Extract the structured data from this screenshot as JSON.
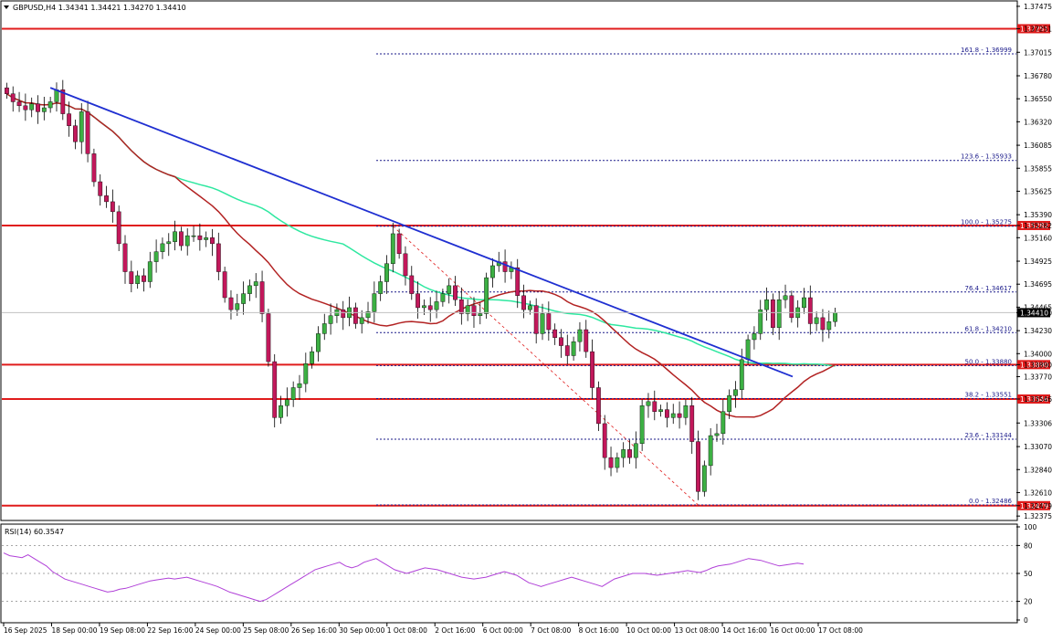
{
  "header": {
    "symbol_line": "GBPUSD,H4  1.34341 1.34421 1.34270 1.34410",
    "collapse_icon": "triangle-down-icon"
  },
  "rsi_header": "RSI(14) 60.3547",
  "colors": {
    "background": "#ffffff",
    "bull_candle": "#3cb043",
    "bear_candle": "#c2185b",
    "ma_slow": "#b22222",
    "ma_fast": "#2ee8a0",
    "trendline": "#1f2fd1",
    "level_line": "#e01b1b",
    "fib_line": "#1a1a8a",
    "rsi_line": "#b040d8",
    "grid_text": "#000000"
  },
  "chart_data": [
    {
      "type": "candlestick",
      "symbol": "GBPUSD",
      "timeframe": "H4",
      "ohlc_header": {
        "open": 1.34341,
        "high": 1.34421,
        "low": 1.3427,
        "close": 1.3441
      },
      "y_axis_ticks": [
        "1.37475",
        "1.37251",
        "1.37015",
        "1.36780",
        "1.36550",
        "1.36320",
        "1.36085",
        "1.35855",
        "1.35625",
        "1.35390",
        "1.35282",
        "1.35160",
        "1.34925",
        "1.34695",
        "1.34465",
        "1.34410",
        "1.34230",
        "1.34000",
        "1.33890",
        "1.33770",
        "1.33546",
        "1.33306",
        "1.33070",
        "1.32840",
        "1.32610",
        "1.32479",
        "1.32375"
      ],
      "ylim": [
        1.3234,
        1.3752
      ],
      "x_axis_ticks": [
        "16 Sep 2025",
        "18 Sep 00:00",
        "19 Sep 08:00",
        "22 Sep 16:00",
        "24 Sep 00:00",
        "25 Sep 08:00",
        "26 Sep 16:00",
        "30 Sep 00:00",
        "1 Oct 08:00",
        "2 Oct 16:00",
        "6 Oct 00:00",
        "7 Oct 08:00",
        "8 Oct 16:00",
        "10 Oct 00:00",
        "13 Oct 08:00",
        "14 Oct 16:00",
        "16 Oct 00:00",
        "17 Oct 08:00"
      ],
      "close_series": [
        1.366,
        1.3652,
        1.3648,
        1.3644,
        1.365,
        1.3642,
        1.3646,
        1.3652,
        1.3664,
        1.364,
        1.3628,
        1.3612,
        1.3642,
        1.36,
        1.3572,
        1.3558,
        1.3552,
        1.3542,
        1.351,
        1.3482,
        1.347,
        1.3478,
        1.3472,
        1.3492,
        1.3502,
        1.351,
        1.3512,
        1.3522,
        1.3508,
        1.3518,
        1.3518,
        1.3514,
        1.3516,
        1.351,
        1.3482,
        1.3456,
        1.3444,
        1.345,
        1.346,
        1.3468,
        1.3472,
        1.344,
        1.3392,
        1.3336,
        1.3348,
        1.3354,
        1.3366,
        1.337,
        1.339,
        1.3402,
        1.342,
        1.343,
        1.3438,
        1.3444,
        1.3436,
        1.3446,
        1.343,
        1.3436,
        1.3442,
        1.346,
        1.3472,
        1.349,
        1.352,
        1.35,
        1.3478,
        1.346,
        1.3446,
        1.3448,
        1.3444,
        1.3452,
        1.346,
        1.3468,
        1.3454,
        1.344,
        1.3448,
        1.3438,
        1.344,
        1.3476,
        1.3488,
        1.3492,
        1.3482,
        1.3486,
        1.3458,
        1.3444,
        1.3448,
        1.342,
        1.344,
        1.3424,
        1.3416,
        1.3408,
        1.3398,
        1.3412,
        1.3424,
        1.3402,
        1.3366,
        1.333,
        1.3296,
        1.3286,
        1.3296,
        1.3304,
        1.3296,
        1.331,
        1.3348,
        1.3352,
        1.3342,
        1.3344,
        1.3336,
        1.334,
        1.3336,
        1.3348,
        1.3312,
        1.3262,
        1.3288,
        1.3318,
        1.332,
        1.3342,
        1.3358,
        1.3364,
        1.3394,
        1.3414,
        1.342,
        1.3444,
        1.3454,
        1.3426,
        1.3454,
        1.3458,
        1.3436,
        1.3446,
        1.3456,
        1.343,
        1.3436,
        1.3424,
        1.3432,
        1.3441
      ],
      "overlays": [
        {
          "name": "",
          "kind": "moving-average",
          "color": "#b22222"
        },
        {
          "name": "",
          "kind": "moving-average",
          "color": "#2ee8a0"
        },
        {
          "name": "",
          "kind": "trendline",
          "color": "#1f2fd1",
          "from": 1.3666,
          "to": 1.3377
        }
      ],
      "horizontal_levels": [
        {
          "label": "1.37251",
          "value": 1.37251,
          "style": "solid"
        },
        {
          "label": "1.35282",
          "value": 1.35282,
          "style": "solid"
        },
        {
          "label": "1.33890",
          "value": 1.3389,
          "style": "solid"
        },
        {
          "label": "1.33546",
          "value": 1.33546,
          "style": "solid"
        },
        {
          "label": "1.32479",
          "value": 1.32479,
          "style": "solid"
        }
      ],
      "fibonacci_levels": [
        {
          "label": "161.8 - 1.36999",
          "value": 1.36999
        },
        {
          "label": "123.6 - 1.35933",
          "value": 1.35933
        },
        {
          "label": "100.0 - 1.35275",
          "value": 1.35275
        },
        {
          "label": "76.4 - 1.34617",
          "value": 1.34617
        },
        {
          "label": "61.8 - 1.34210",
          "value": 1.3421
        },
        {
          "label": "50.0 - 1.33880",
          "value": 1.3388
        },
        {
          "label": "38.2 - 1.33551",
          "value": 1.33551
        },
        {
          "label": "23.6 - 1.33144",
          "value": 1.33144
        },
        {
          "label": "0.0 - 1.32486",
          "value": 1.32486
        }
      ],
      "current_price": "1.34410"
    },
    {
      "type": "line",
      "indicator": "RSI(14)",
      "value_label": "60.3547",
      "y_axis_ticks": [
        "100",
        "80",
        "50",
        "20",
        "0"
      ],
      "ylim": [
        0,
        100
      ],
      "levels": [
        80,
        50,
        20
      ],
      "values": [
        72,
        69,
        68,
        67,
        70,
        66,
        62,
        58,
        52,
        48,
        44,
        42,
        40,
        38,
        36,
        34,
        32,
        30,
        31,
        33,
        34,
        36,
        38,
        40,
        42,
        43,
        44,
        45,
        44,
        45,
        46,
        44,
        42,
        40,
        38,
        36,
        33,
        30,
        28,
        26,
        24,
        22,
        20,
        22,
        26,
        30,
        34,
        38,
        42,
        46,
        50,
        54,
        56,
        58,
        60,
        62,
        58,
        56,
        58,
        62,
        64,
        66,
        62,
        58,
        54,
        52,
        50,
        52,
        54,
        56,
        55,
        54,
        52,
        50,
        48,
        46,
        45,
        44,
        45,
        46,
        48,
        50,
        52,
        50,
        48,
        44,
        40,
        38,
        36,
        38,
        40,
        42,
        44,
        46,
        44,
        42,
        40,
        38,
        36,
        40,
        44,
        46,
        48,
        50,
        50,
        50,
        49,
        48,
        49,
        50,
        51,
        52,
        53,
        52,
        51,
        53,
        56,
        58,
        59,
        60,
        62,
        64,
        66,
        65,
        64,
        62,
        60,
        58,
        59,
        60,
        61,
        60
      ]
    }
  ]
}
